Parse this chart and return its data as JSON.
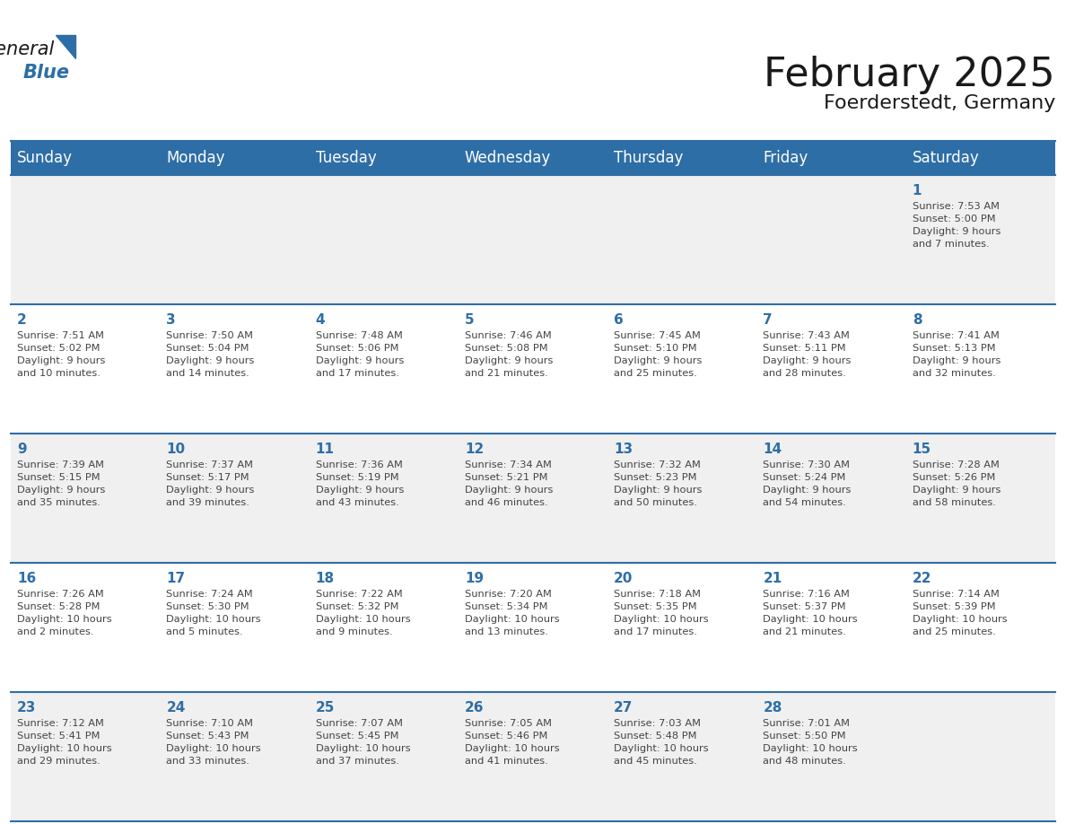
{
  "title": "February 2025",
  "subtitle": "Foerderstedt, Germany",
  "header_bg": "#2E6EA6",
  "header_text_color": "#FFFFFF",
  "cell_bg_even": "#F0F0F0",
  "cell_bg_odd": "#FFFFFF",
  "grid_line_color": "#2E6EA6",
  "day_number_color": "#2E6EA6",
  "cell_text_color": "#444444",
  "days_of_week": [
    "Sunday",
    "Monday",
    "Tuesday",
    "Wednesday",
    "Thursday",
    "Friday",
    "Saturday"
  ],
  "weeks": [
    [
      {
        "day": null,
        "text": ""
      },
      {
        "day": null,
        "text": ""
      },
      {
        "day": null,
        "text": ""
      },
      {
        "day": null,
        "text": ""
      },
      {
        "day": null,
        "text": ""
      },
      {
        "day": null,
        "text": ""
      },
      {
        "day": 1,
        "text": "Sunrise: 7:53 AM\nSunset: 5:00 PM\nDaylight: 9 hours\nand 7 minutes."
      }
    ],
    [
      {
        "day": 2,
        "text": "Sunrise: 7:51 AM\nSunset: 5:02 PM\nDaylight: 9 hours\nand 10 minutes."
      },
      {
        "day": 3,
        "text": "Sunrise: 7:50 AM\nSunset: 5:04 PM\nDaylight: 9 hours\nand 14 minutes."
      },
      {
        "day": 4,
        "text": "Sunrise: 7:48 AM\nSunset: 5:06 PM\nDaylight: 9 hours\nand 17 minutes."
      },
      {
        "day": 5,
        "text": "Sunrise: 7:46 AM\nSunset: 5:08 PM\nDaylight: 9 hours\nand 21 minutes."
      },
      {
        "day": 6,
        "text": "Sunrise: 7:45 AM\nSunset: 5:10 PM\nDaylight: 9 hours\nand 25 minutes."
      },
      {
        "day": 7,
        "text": "Sunrise: 7:43 AM\nSunset: 5:11 PM\nDaylight: 9 hours\nand 28 minutes."
      },
      {
        "day": 8,
        "text": "Sunrise: 7:41 AM\nSunset: 5:13 PM\nDaylight: 9 hours\nand 32 minutes."
      }
    ],
    [
      {
        "day": 9,
        "text": "Sunrise: 7:39 AM\nSunset: 5:15 PM\nDaylight: 9 hours\nand 35 minutes."
      },
      {
        "day": 10,
        "text": "Sunrise: 7:37 AM\nSunset: 5:17 PM\nDaylight: 9 hours\nand 39 minutes."
      },
      {
        "day": 11,
        "text": "Sunrise: 7:36 AM\nSunset: 5:19 PM\nDaylight: 9 hours\nand 43 minutes."
      },
      {
        "day": 12,
        "text": "Sunrise: 7:34 AM\nSunset: 5:21 PM\nDaylight: 9 hours\nand 46 minutes."
      },
      {
        "day": 13,
        "text": "Sunrise: 7:32 AM\nSunset: 5:23 PM\nDaylight: 9 hours\nand 50 minutes."
      },
      {
        "day": 14,
        "text": "Sunrise: 7:30 AM\nSunset: 5:24 PM\nDaylight: 9 hours\nand 54 minutes."
      },
      {
        "day": 15,
        "text": "Sunrise: 7:28 AM\nSunset: 5:26 PM\nDaylight: 9 hours\nand 58 minutes."
      }
    ],
    [
      {
        "day": 16,
        "text": "Sunrise: 7:26 AM\nSunset: 5:28 PM\nDaylight: 10 hours\nand 2 minutes."
      },
      {
        "day": 17,
        "text": "Sunrise: 7:24 AM\nSunset: 5:30 PM\nDaylight: 10 hours\nand 5 minutes."
      },
      {
        "day": 18,
        "text": "Sunrise: 7:22 AM\nSunset: 5:32 PM\nDaylight: 10 hours\nand 9 minutes."
      },
      {
        "day": 19,
        "text": "Sunrise: 7:20 AM\nSunset: 5:34 PM\nDaylight: 10 hours\nand 13 minutes."
      },
      {
        "day": 20,
        "text": "Sunrise: 7:18 AM\nSunset: 5:35 PM\nDaylight: 10 hours\nand 17 minutes."
      },
      {
        "day": 21,
        "text": "Sunrise: 7:16 AM\nSunset: 5:37 PM\nDaylight: 10 hours\nand 21 minutes."
      },
      {
        "day": 22,
        "text": "Sunrise: 7:14 AM\nSunset: 5:39 PM\nDaylight: 10 hours\nand 25 minutes."
      }
    ],
    [
      {
        "day": 23,
        "text": "Sunrise: 7:12 AM\nSunset: 5:41 PM\nDaylight: 10 hours\nand 29 minutes."
      },
      {
        "day": 24,
        "text": "Sunrise: 7:10 AM\nSunset: 5:43 PM\nDaylight: 10 hours\nand 33 minutes."
      },
      {
        "day": 25,
        "text": "Sunrise: 7:07 AM\nSunset: 5:45 PM\nDaylight: 10 hours\nand 37 minutes."
      },
      {
        "day": 26,
        "text": "Sunrise: 7:05 AM\nSunset: 5:46 PM\nDaylight: 10 hours\nand 41 minutes."
      },
      {
        "day": 27,
        "text": "Sunrise: 7:03 AM\nSunset: 5:48 PM\nDaylight: 10 hours\nand 45 minutes."
      },
      {
        "day": 28,
        "text": "Sunrise: 7:01 AM\nSunset: 5:50 PM\nDaylight: 10 hours\nand 48 minutes."
      },
      {
        "day": null,
        "text": ""
      }
    ]
  ],
  "title_fontsize": 32,
  "subtitle_fontsize": 16,
  "header_fontsize": 12,
  "day_number_fontsize": 11,
  "cell_text_fontsize": 8.2
}
